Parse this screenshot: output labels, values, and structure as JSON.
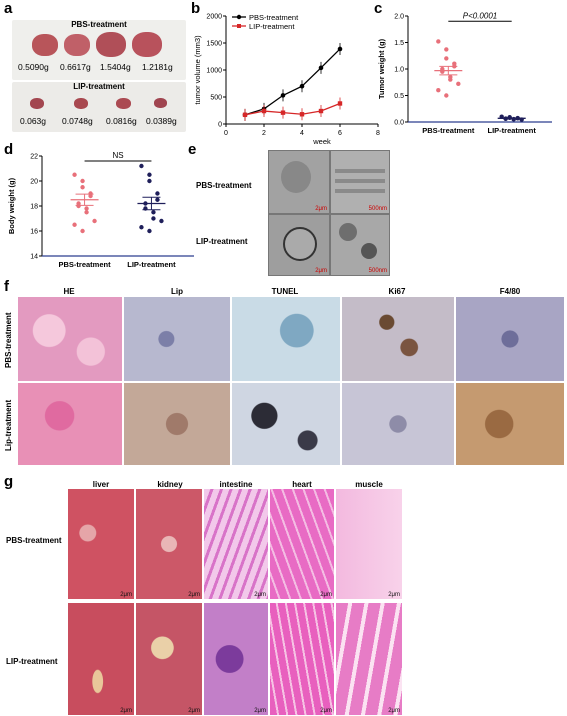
{
  "panel_labels": {
    "a": "a",
    "b": "b",
    "c": "c",
    "d": "d",
    "e": "e",
    "f": "f",
    "g": "g"
  },
  "panel_a": {
    "pbs_title": "PBS-treatment",
    "lip_title": "LIP-treatment",
    "pbs_weights": [
      "0.5090g",
      "0.6617g",
      "1.5404g",
      "1.2181g"
    ],
    "lip_weights": [
      "0.063g",
      "0.0748g",
      "0.0816g",
      "0.0389g"
    ]
  },
  "panel_e": {
    "rows": [
      "PBS-treatment",
      "LIP-treatment"
    ],
    "scale_bars": [
      "2μm",
      "500nm",
      "2μm",
      "500nm"
    ]
  },
  "panel_f": {
    "columns": [
      "HE",
      "Lip",
      "TUNEL",
      "Ki67",
      "F4/80"
    ],
    "rows": [
      "PBS-treatment",
      "Lip-treatment"
    ]
  },
  "panel_g": {
    "columns": [
      "liver",
      "kidney",
      "intestine",
      "heart",
      "muscle"
    ],
    "rows": [
      "PBS-treatment",
      "LIP-treatment"
    ],
    "scale_label": "2μm"
  },
  "colors": {
    "pbs": "#e8707a",
    "lip": "#1f1f5a",
    "line_pbs": "#000000",
    "line_lip": "#d62728",
    "accent_blue": "#2c3e8f"
  },
  "chart_data": [
    {
      "type": "line",
      "panel": "b",
      "xlabel": "week",
      "ylabel": "tumor volume (mm3)",
      "xlim": [
        0,
        8
      ],
      "ylim": [
        0,
        2000
      ],
      "xticks": [
        0,
        2,
        4,
        6,
        8
      ],
      "yticks": [
        0,
        500,
        1000,
        1500,
        2000
      ],
      "legend_position": "top-left",
      "series": [
        {
          "name": "PBS-treatment",
          "x": [
            1,
            2,
            3,
            4,
            5,
            6
          ],
          "y": [
            170,
            280,
            530,
            700,
            1040,
            1390
          ]
        },
        {
          "name": "LIP-treatment",
          "x": [
            1,
            2,
            3,
            4,
            5,
            6
          ],
          "y": [
            170,
            240,
            210,
            180,
            240,
            380
          ]
        }
      ]
    },
    {
      "type": "scatter",
      "panel": "c",
      "ylabel": "Tumor weight (g)",
      "ylim": [
        0,
        2.0
      ],
      "yticks": [
        0.0,
        0.5,
        1.0,
        1.5,
        2.0
      ],
      "yticklabels": [
        "0.0",
        "0.5",
        "1.0",
        "1.5",
        "2.0"
      ],
      "categories": [
        "PBS-treatment",
        "LIP-treatment"
      ],
      "annotation": "P<0.0001",
      "series": [
        {
          "name": "PBS-treatment",
          "values": [
            1.52,
            1.37,
            1.2,
            1.1,
            1.05,
            1.0,
            0.95,
            0.85,
            0.8,
            0.72,
            0.6,
            0.5
          ],
          "mean": 0.97,
          "sem": 0.08
        },
        {
          "name": "LIP-treatment",
          "values": [
            0.1,
            0.09,
            0.08,
            0.075,
            0.07,
            0.065,
            0.06,
            0.055,
            0.05,
            0.045
          ],
          "mean": 0.07,
          "sem": 0.005
        }
      ]
    },
    {
      "type": "scatter",
      "panel": "d",
      "ylabel": "Body weight (g)",
      "ylim": [
        14,
        22
      ],
      "yticks": [
        14,
        16,
        18,
        20,
        22
      ],
      "categories": [
        "PBS-treatment",
        "LIP-treatment"
      ],
      "annotation": "NS",
      "series": [
        {
          "name": "PBS-treatment",
          "values": [
            20.5,
            20.0,
            19.5,
            19.0,
            18.8,
            18.2,
            18.0,
            17.8,
            17.5,
            16.8,
            16.5,
            16.0
          ],
          "mean": 18.5,
          "sem": 0.45
        },
        {
          "name": "LIP-treatment",
          "values": [
            21.2,
            20.5,
            20.0,
            19.0,
            18.5,
            18.2,
            17.8,
            17.5,
            17.0,
            16.8,
            16.3,
            16.0
          ],
          "mean": 18.2,
          "sem": 0.5
        }
      ]
    }
  ]
}
